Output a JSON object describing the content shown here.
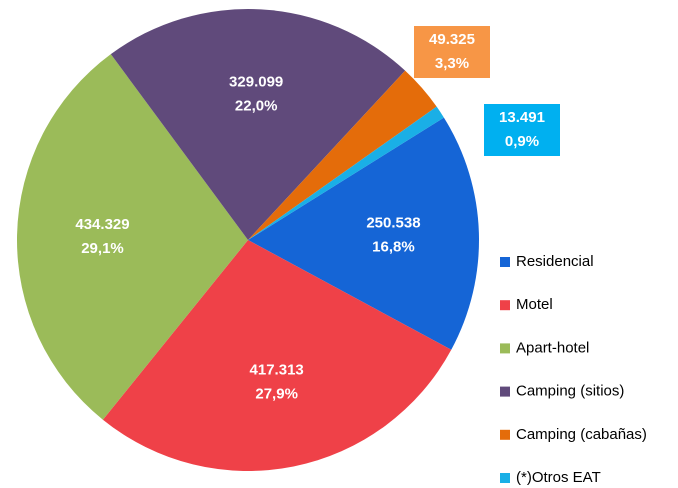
{
  "chart_data": {
    "type": "pie",
    "categories": [
      "Residencial",
      "Motel",
      "Apart-hotel",
      "Camping (sitios)",
      "Camping (cabañas)",
      "(*)Otros EAT"
    ],
    "values": [
      250538,
      417313,
      434329,
      329099,
      49325,
      13491
    ],
    "value_labels": [
      "250.538",
      "417.313",
      "434.329",
      "329.099",
      "49.325",
      "13.491"
    ],
    "percentages": [
      16.8,
      27.9,
      29.1,
      22.0,
      3.3,
      0.9
    ],
    "percentage_labels": [
      "16,8%",
      "27,9%",
      "29,1%",
      "22,0%",
      "3,3%",
      "0,9%"
    ],
    "colors": [
      "#1565d6",
      "#ef4148",
      "#9bbb59",
      "#604a7b",
      "#e46c0a",
      "#1aafe6"
    ],
    "label_box_colors": [
      null,
      null,
      null,
      null,
      "#f79646",
      "#00b0f0"
    ],
    "legend": "right"
  }
}
